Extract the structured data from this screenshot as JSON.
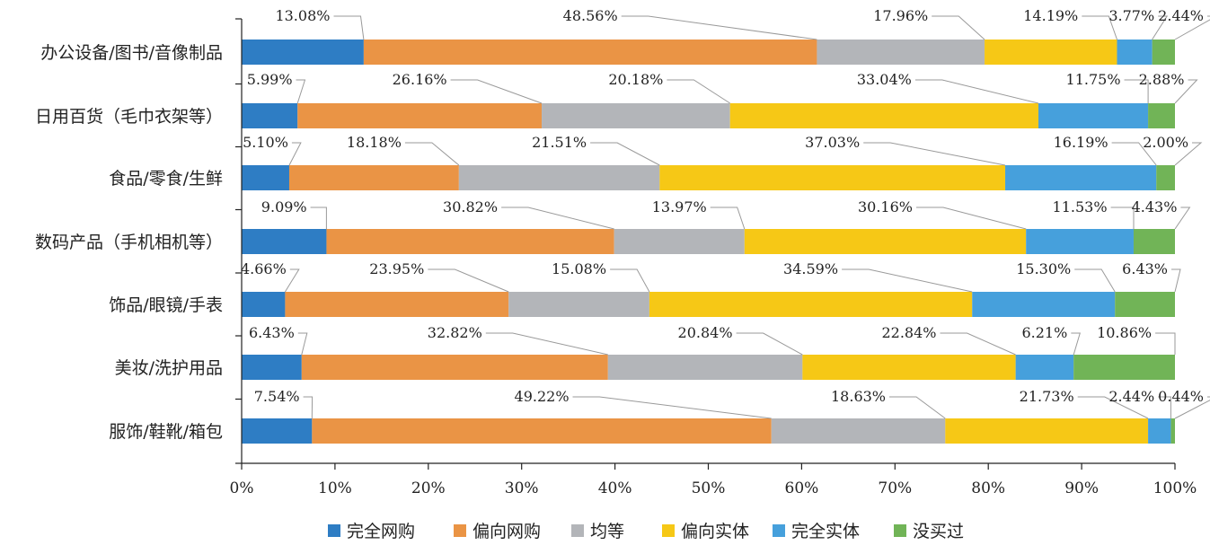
{
  "chart_data": {
    "type": "bar",
    "orientation": "horizontal",
    "stacked": "percent",
    "categories": [
      "办公设备/图书/音像制品",
      "日用百货（毛巾衣架等）",
      "食品/零食/生鲜",
      "数码产品（手机相机等）",
      "饰品/眼镜/手表",
      "美妆/洗护用品",
      "服饰/鞋靴/箱包"
    ],
    "series": [
      {
        "name": "完全网购",
        "color": "#2e7dc4",
        "values": [
          13.08,
          5.99,
          5.1,
          9.09,
          4.66,
          6.43,
          7.54
        ],
        "labels": [
          "13.08%",
          "5.99%",
          "5.10%",
          "9.09%",
          "4.66%",
          "6.43%",
          "7.54%"
        ]
      },
      {
        "name": "偏向网购",
        "color": "#ea9445",
        "values": [
          48.56,
          26.16,
          18.18,
          30.82,
          23.95,
          32.82,
          49.22
        ],
        "labels": [
          "48.56%",
          "26.16%",
          "18.18%",
          "30.82%",
          "23.95%",
          "32.82%",
          "49.22%"
        ]
      },
      {
        "name": "均等",
        "color": "#b3b5b9",
        "values": [
          17.96,
          20.18,
          21.51,
          13.97,
          15.08,
          20.84,
          18.63
        ],
        "labels": [
          "17.96%",
          "20.18%",
          "21.51%",
          "13.97%",
          "15.08%",
          "20.84%",
          "18.63%"
        ]
      },
      {
        "name": "偏向实体",
        "color": "#f6c816",
        "values": [
          14.19,
          33.04,
          37.03,
          30.16,
          34.59,
          22.84,
          21.73
        ],
        "labels": [
          "14.19%",
          "33.04%",
          "37.03%",
          "30.16%",
          "34.59%",
          "22.84%",
          "21.73%"
        ]
      },
      {
        "name": "完全实体",
        "color": "#46a0dc",
        "values": [
          3.77,
          11.75,
          16.19,
          11.53,
          15.3,
          6.21,
          2.44
        ],
        "labels": [
          "3.77%",
          "11.75%",
          "16.19%",
          "11.53%",
          "15.30%",
          "6.21%",
          "2.44%"
        ]
      },
      {
        "name": "没买过",
        "color": "#71b457",
        "values": [
          2.44,
          2.88,
          2.0,
          4.43,
          6.43,
          10.86,
          0.44
        ],
        "labels": [
          "2.44%",
          "2.88%",
          "2.00%",
          "4.43%",
          "6.43%",
          "10.86%",
          "0.44%"
        ]
      }
    ],
    "xlim": [
      0,
      100
    ],
    "x_ticks": [
      "0%",
      "10%",
      "20%",
      "30%",
      "40%",
      "50%",
      "60%",
      "70%",
      "80%",
      "90%",
      "100%"
    ],
    "legend": "bottom",
    "grid": false
  }
}
